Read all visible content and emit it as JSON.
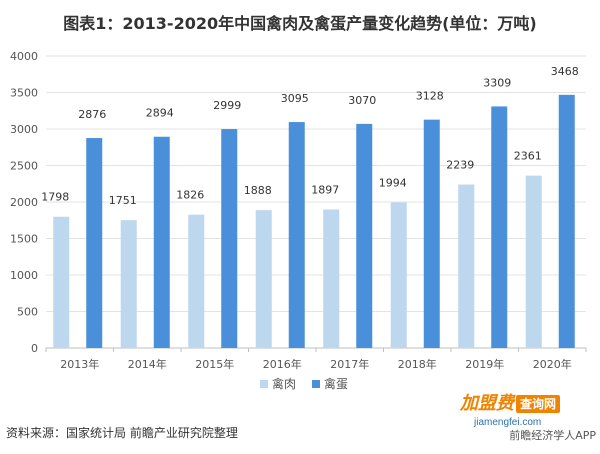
{
  "chart_data": {
    "type": "bar",
    "title": "图表1：2013-2020年中国禽肉及禽蛋产量变化趋势(单位：万吨)",
    "categories": [
      "2013年",
      "2014年",
      "2015年",
      "2016年",
      "2017年",
      "2018年",
      "2019年",
      "2020年"
    ],
    "series": [
      {
        "name": "禽肉",
        "values": [
          1798,
          1751,
          1826,
          1888,
          1897,
          1994,
          2239,
          2361
        ],
        "color": "#bdd7ee"
      },
      {
        "name": "禽蛋",
        "values": [
          2876,
          2894,
          2999,
          3095,
          3070,
          3128,
          3309,
          3468
        ],
        "color": "#4a8fd9"
      }
    ],
    "yticks": [
      "0",
      "500",
      "1000",
      "1500",
      "2000",
      "2500",
      "3000",
      "3500",
      "4000"
    ],
    "ylim": [
      0,
      4000
    ],
    "grid": true,
    "legend_position": "bottom",
    "xlabel": "",
    "ylabel": ""
  },
  "footer": {
    "source": "资料来源：国家统计局 前瞻产业研究院整理",
    "brand_name": "加盟费",
    "brand_tag": "查询网",
    "brand_domain": "jiamengfei.com",
    "app_credit": "前瞻经济学人APP"
  }
}
